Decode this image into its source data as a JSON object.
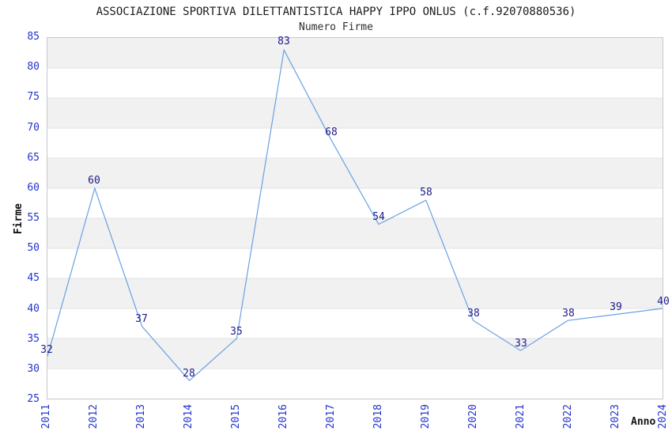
{
  "chart_data": {
    "type": "line",
    "title": "ASSOCIAZIONE SPORTIVA DILETTANTISTICA HAPPY IPPO ONLUS (c.f.92070880536)",
    "subtitle": "Numero Firme",
    "xlabel": "Anno",
    "ylabel": "Firme",
    "categories": [
      "2011",
      "2012",
      "2013",
      "2014",
      "2015",
      "2016",
      "2017",
      "2018",
      "2019",
      "2020",
      "2021",
      "2022",
      "2023",
      "2024"
    ],
    "values": [
      32,
      60,
      37,
      28,
      35,
      83,
      68,
      54,
      58,
      38,
      33,
      38,
      39,
      40
    ],
    "ylim": [
      25,
      85
    ],
    "yticks": [
      25,
      30,
      35,
      40,
      45,
      50,
      55,
      60,
      65,
      70,
      75,
      80,
      85
    ],
    "data_labels_shown": true,
    "legend": "none",
    "grid": "horizontal-bands",
    "colors": {
      "line": "#68a1e3",
      "axis_tick_label": "#2233cc",
      "data_label": "#1b1b8a",
      "band_fill": "#f1f1f1",
      "gridline": "#e2e2e2",
      "plot_border": "#c8c8c8",
      "title_text": "#1c1c1c"
    }
  }
}
